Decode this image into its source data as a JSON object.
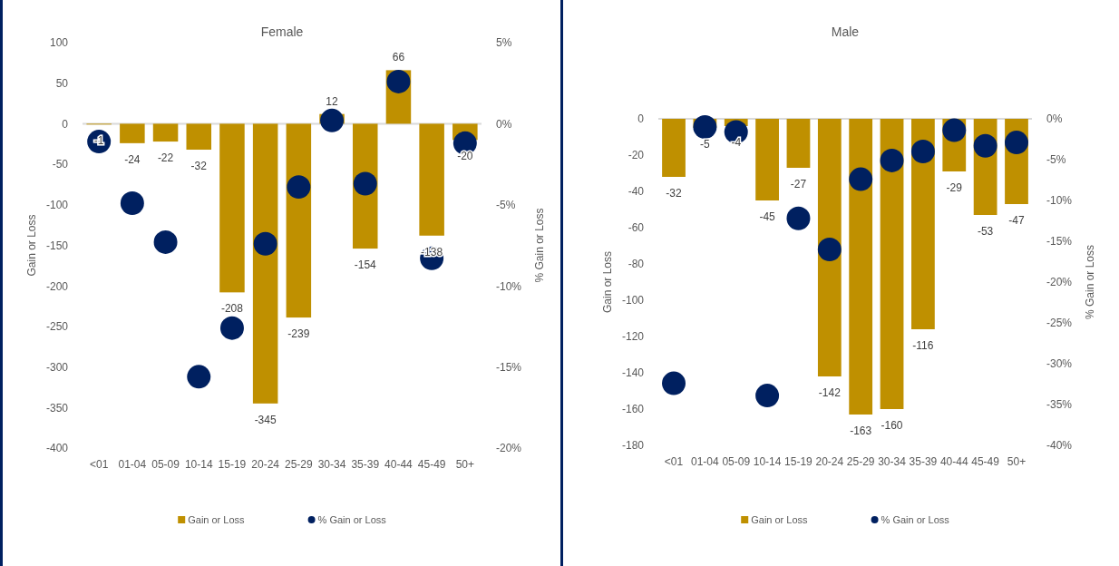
{
  "chart_data": [
    {
      "type": "bar",
      "title": "Female",
      "ylabel": "Gain or Loss",
      "y2label": "% Gain or Loss",
      "categories": [
        "<01",
        "01-04",
        "05-09",
        "10-14",
        "15-19",
        "20-24",
        "25-29",
        "30-34",
        "35-39",
        "40-44",
        "45-49",
        "50+"
      ],
      "series": [
        {
          "name": "Gain or Loss",
          "type": "bar",
          "color": "#bf9000",
          "values": [
            -1,
            -24,
            -22,
            -32,
            -208,
            -345,
            -239,
            12,
            -154,
            66,
            -138,
            -20
          ],
          "value_labels": [
            "-1",
            "-24",
            "-22",
            "-32",
            "-208",
            "-345",
            "-239",
            "12",
            "-154",
            "66",
            "-138",
            "-20"
          ]
        },
        {
          "name": "% Gain or Loss",
          "type": "scatter",
          "axis": "y2",
          "color": "#002060",
          "values": [
            -1.1,
            -4.9,
            -7.3,
            -15.6,
            -12.6,
            -7.4,
            -3.9,
            0.2,
            -3.7,
            2.6,
            -8.3,
            -1.2
          ]
        }
      ],
      "ylim": [
        -400,
        100
      ],
      "yticks": [
        -400,
        -350,
        -300,
        -250,
        -200,
        -150,
        -100,
        -50,
        0,
        50,
        100
      ],
      "y2lim": [
        -20,
        5
      ],
      "y2ticks": [
        {
          "value": -20,
          "label": "-20%"
        },
        {
          "value": -15,
          "label": "-15%"
        },
        {
          "value": -10,
          "label": "-10%"
        },
        {
          "value": -5,
          "label": "-5%"
        },
        {
          "value": 0,
          "label": "0%"
        },
        {
          "value": 5,
          "label": "5%"
        }
      ],
      "marker": "circle",
      "legend": "bottom"
    },
    {
      "type": "bar",
      "title": "Male",
      "ylabel": "Gain or Loss",
      "y2label": "% Gain or Loss",
      "categories": [
        "<01",
        "01-04",
        "05-09",
        "10-14",
        "15-19",
        "20-24",
        "25-29",
        "30-34",
        "35-39",
        "40-44",
        "45-49",
        "50+"
      ],
      "series": [
        {
          "name": "Gain or Loss",
          "type": "bar",
          "color": "#bf9000",
          "values": [
            -32,
            -5,
            -4,
            -45,
            -27,
            -142,
            -163,
            -160,
            -116,
            -29,
            -53,
            -47
          ],
          "value_labels": [
            "-32",
            "-5",
            "-4",
            "-45",
            "-27",
            "-142",
            "-163",
            "-160",
            "-116",
            "-29",
            "-53",
            "-47"
          ]
        },
        {
          "name": "% Gain or Loss",
          "type": "scatter",
          "axis": "y2",
          "color": "#002060",
          "values": [
            -32.4,
            -1.0,
            -1.6,
            -33.9,
            -12.2,
            -16.0,
            -7.4,
            -5.1,
            -4.0,
            -1.4,
            -3.3,
            -2.9
          ]
        }
      ],
      "ylim": [
        -180,
        0
      ],
      "yticks": [
        -180,
        -160,
        -140,
        -120,
        -100,
        -80,
        -60,
        -40,
        -20,
        0
      ],
      "y2lim": [
        -40,
        0
      ],
      "y2ticks": [
        {
          "value": -40,
          "label": "-40%"
        },
        {
          "value": -35,
          "label": "-35%"
        },
        {
          "value": -30,
          "label": "-30%"
        },
        {
          "value": -25,
          "label": "-25%"
        },
        {
          "value": -20,
          "label": "-20%"
        },
        {
          "value": -15,
          "label": "-15%"
        },
        {
          "value": -10,
          "label": "-10%"
        },
        {
          "value": -5,
          "label": "-5%"
        },
        {
          "value": 0,
          "label": "0%"
        }
      ],
      "marker": "circle",
      "legend": "bottom"
    }
  ]
}
